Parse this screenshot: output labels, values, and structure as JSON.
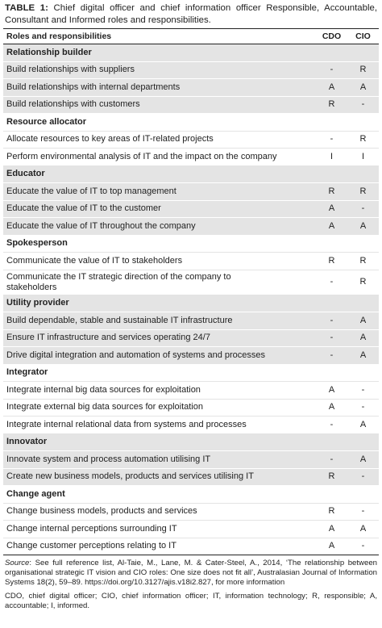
{
  "title": {
    "label": "TABLE 1:",
    "text": "Chief digital officer and chief information officer Responsible, Accountable, Consultant and Informed roles and responsibilities."
  },
  "table": {
    "columns": [
      "Roles and responsibilities",
      "CDO",
      "CIO"
    ],
    "sections": [
      {
        "heading": "Relationship builder",
        "rows": [
          [
            "Build relationships with suppliers",
            "-",
            "R"
          ],
          [
            "Build relationships with internal departments",
            "A",
            "A"
          ],
          [
            "Build relationships with customers",
            "R",
            "-"
          ]
        ]
      },
      {
        "heading": "Resource allocator",
        "rows": [
          [
            "Allocate resources to key areas of IT-related projects",
            "-",
            "R"
          ],
          [
            "Perform environmental analysis of IT and the impact on the company",
            "I",
            "I"
          ]
        ]
      },
      {
        "heading": "Educator",
        "rows": [
          [
            "Educate the value of IT to top management",
            "R",
            "R"
          ],
          [
            "Educate the value of IT to the customer",
            "A",
            "-"
          ],
          [
            "Educate the value of IT throughout the company",
            "A",
            "A"
          ]
        ]
      },
      {
        "heading": "Spokesperson",
        "rows": [
          [
            "Communicate the value of IT to stakeholders",
            "R",
            "R"
          ],
          [
            "Communicate the IT strategic direction of the company to\nstakeholders",
            "-",
            "R"
          ]
        ]
      },
      {
        "heading": "Utility provider",
        "rows": [
          [
            "Build dependable, stable and sustainable IT infrastructure",
            "-",
            "A"
          ],
          [
            "Ensure IT infrastructure and services operating 24/7",
            "-",
            "A"
          ],
          [
            "Drive digital integration and automation of systems and processes",
            "-",
            "A"
          ]
        ]
      },
      {
        "heading": "Integrator",
        "rows": [
          [
            "Integrate internal big data sources for exploitation",
            "A",
            "-"
          ],
          [
            "Integrate external big data sources for exploitation",
            "A",
            "-"
          ],
          [
            "Integrate internal relational data from systems and processes",
            "-",
            "A"
          ]
        ]
      },
      {
        "heading": "Innovator",
        "rows": [
          [
            "Innovate system and process automation utilising IT",
            "-",
            "A"
          ],
          [
            "Create new business models, products and services utilising IT",
            "R",
            "-"
          ]
        ]
      },
      {
        "heading": "Change agent",
        "rows": [
          [
            "Change business models, products and services",
            "R",
            "-"
          ],
          [
            "Change internal perceptions surrounding IT",
            "A",
            "A"
          ],
          [
            "Change customer perceptions relating to IT",
            "A",
            "-"
          ]
        ]
      }
    ]
  },
  "footnote": {
    "source_label": "Source",
    "source_text": ": See full reference list, Al-Taie, M., Lane, M. & Cater-Steel, A., 2014, ‘The relationship between organisational strategic IT vision and CIO roles: One size does not fit all’, Australasian Journal of Information Systems 18(2), 59–89. https://doi.org/10.3127/ajis.v18i2.827, for more information",
    "abbreviations": "CDO, chief digital officer; CIO, chief information officer; IT, information technology; R, responsible; A, accountable; I, informed."
  }
}
